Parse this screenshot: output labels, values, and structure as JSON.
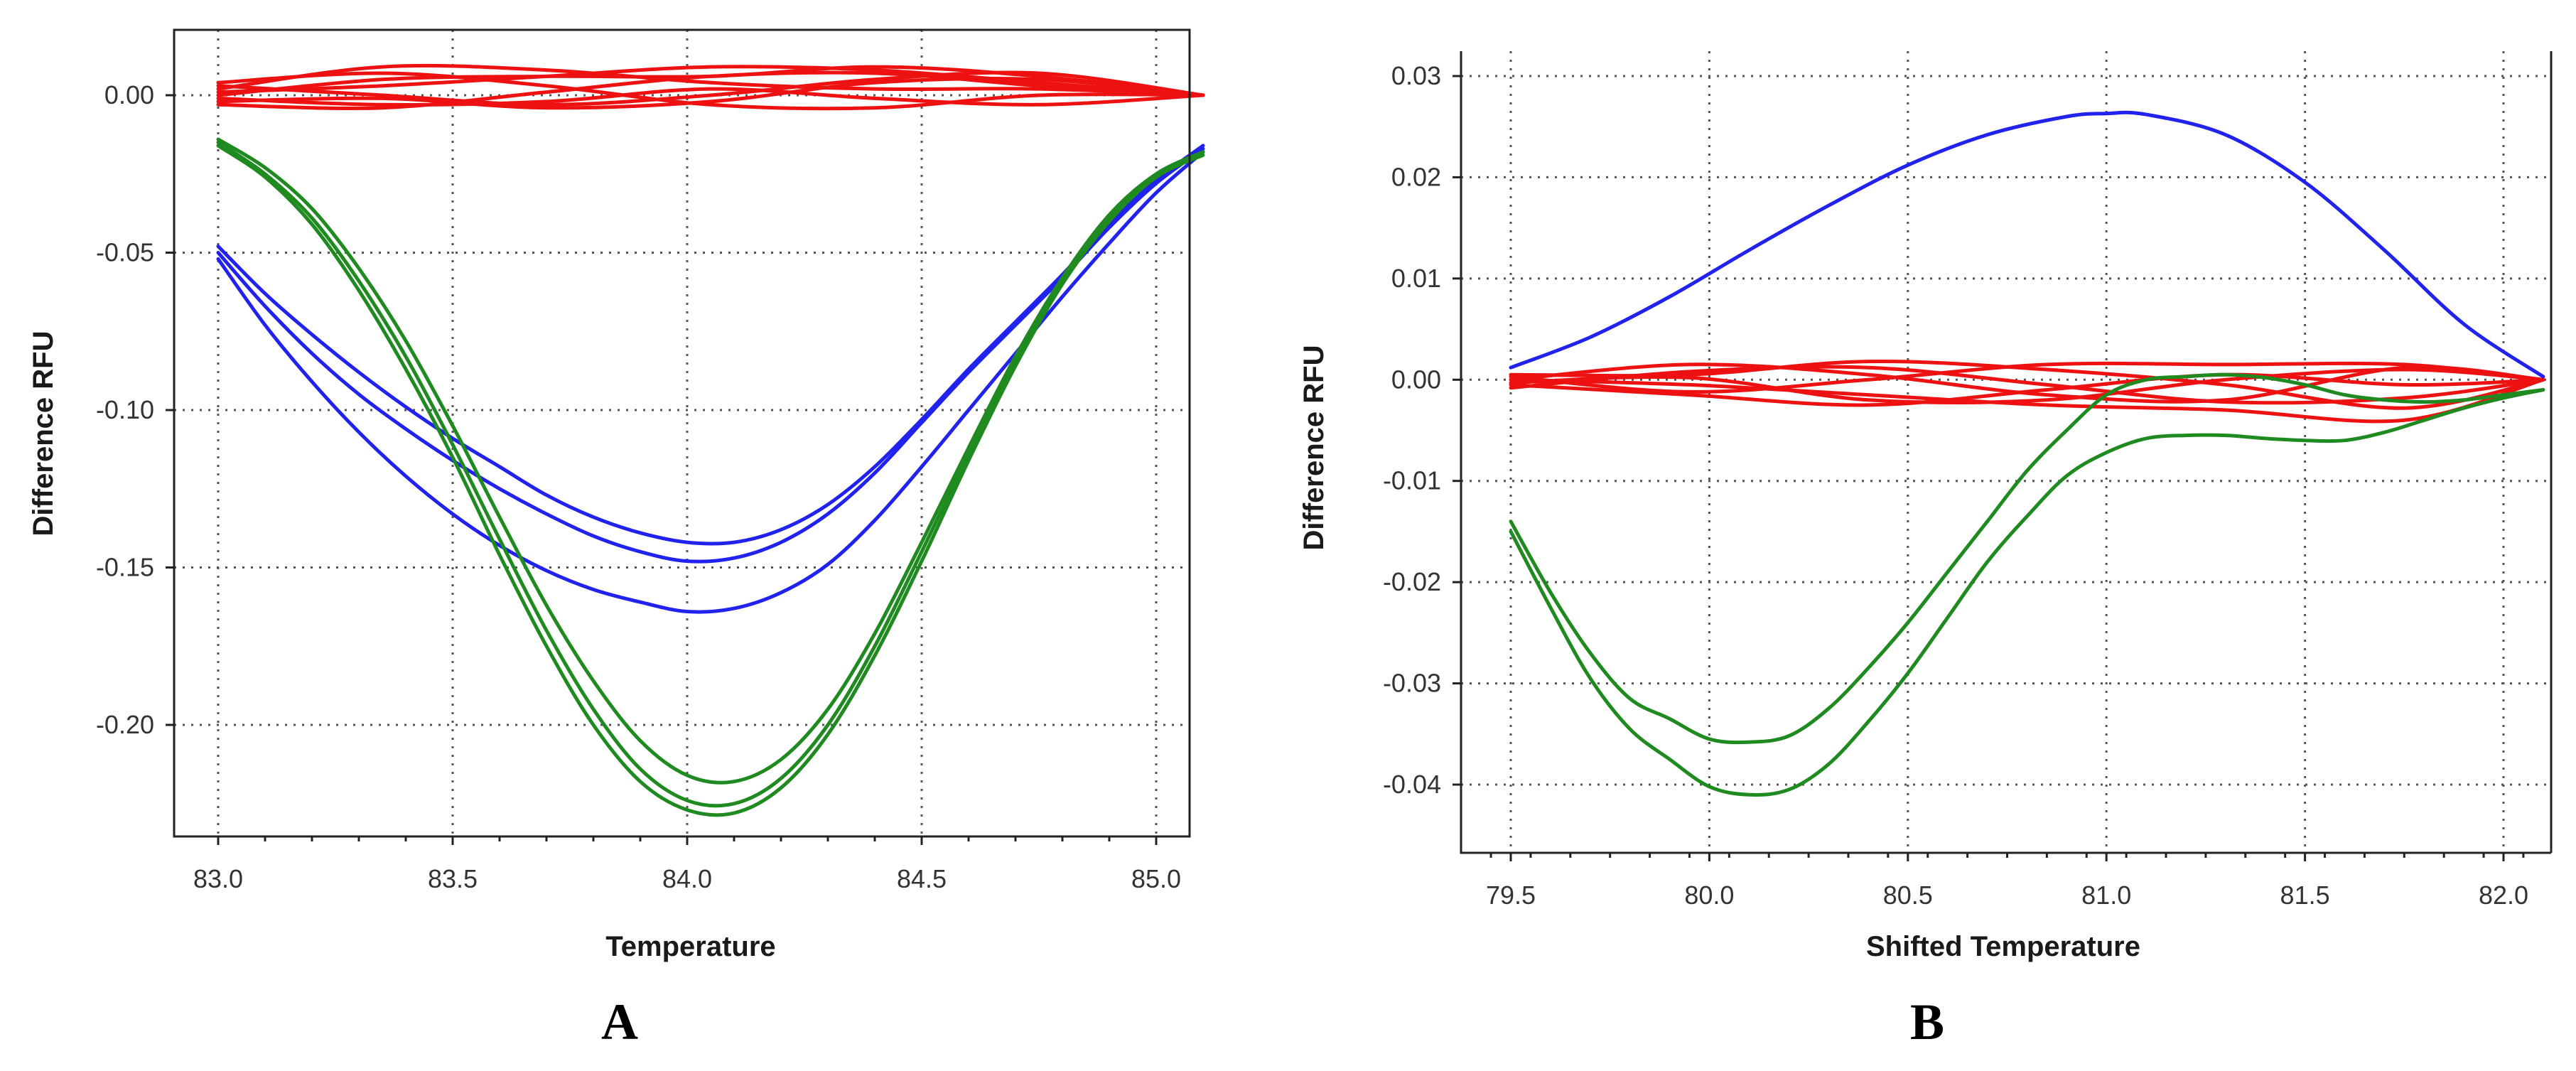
{
  "colors": {
    "red": "#ee1111",
    "blue": "#2222ee",
    "green": "#1f8a1f"
  },
  "chart_data": [
    {
      "type": "line",
      "panel_label": "A",
      "title": "",
      "xlabel": "Temperature",
      "ylabel": "Difference RFU",
      "xlim": [
        83.0,
        85.1
      ],
      "ylim": [
        -0.23,
        0.02
      ],
      "xticks": [
        83.0,
        83.5,
        84.0,
        84.5,
        85.0
      ],
      "xtick_labels": [
        "83.0",
        "83.5",
        "84.0",
        "84.5",
        "85.0"
      ],
      "yticks": [
        0.0,
        -0.05,
        -0.1,
        -0.15,
        -0.2
      ],
      "ytick_labels": [
        "0.00",
        "-0.05",
        "-0.10",
        "-0.15",
        "-0.20"
      ],
      "grid": true,
      "series": [
        {
          "name": "red-1",
          "color": "red",
          "x": [
            83.0,
            83.35,
            83.7,
            84.05,
            84.4,
            84.75,
            85.1
          ],
          "y": [
            0.004,
            0.007,
            0.003,
            -0.003,
            -0.004,
            0.0,
            0.0
          ]
        },
        {
          "name": "red-2",
          "color": "red",
          "x": [
            83.0,
            83.35,
            83.7,
            84.05,
            84.4,
            84.75,
            85.1
          ],
          "y": [
            -0.003,
            -0.004,
            0.001,
            0.006,
            0.007,
            0.003,
            0.0
          ]
        },
        {
          "name": "red-3",
          "color": "red",
          "x": [
            83.0,
            83.35,
            83.7,
            84.05,
            84.4,
            84.75,
            85.1
          ],
          "y": [
            0.002,
            0.009,
            0.008,
            0.004,
            0.002,
            0.002,
            0.0
          ]
        },
        {
          "name": "red-4",
          "color": "red",
          "x": [
            83.0,
            83.35,
            83.7,
            84.05,
            84.4,
            84.75,
            85.1
          ],
          "y": [
            -0.002,
            -0.001,
            -0.004,
            -0.002,
            0.004,
            0.005,
            0.0
          ]
        },
        {
          "name": "red-5",
          "color": "red",
          "x": [
            83.0,
            83.35,
            83.7,
            84.05,
            84.4,
            84.75,
            85.1
          ],
          "y": [
            0.001,
            0.003,
            0.006,
            0.009,
            0.008,
            0.004,
            0.0
          ]
        },
        {
          "name": "red-6",
          "color": "red",
          "x": [
            83.0,
            83.35,
            83.7,
            84.05,
            84.4,
            84.75,
            85.1
          ],
          "y": [
            -0.001,
            -0.003,
            -0.002,
            0.002,
            -0.001,
            -0.003,
            0.0
          ]
        },
        {
          "name": "red-7",
          "color": "red",
          "x": [
            83.0,
            83.35,
            83.7,
            84.05,
            84.4,
            84.75,
            85.1
          ],
          "y": [
            0.003,
            0.0,
            -0.003,
            0.0,
            0.005,
            0.007,
            0.0
          ]
        },
        {
          "name": "red-8",
          "color": "red",
          "x": [
            83.0,
            83.35,
            83.7,
            84.05,
            84.4,
            84.75,
            85.1
          ],
          "y": [
            0.0,
            0.005,
            0.006,
            0.006,
            0.009,
            0.006,
            0.0
          ]
        },
        {
          "name": "blue-1",
          "color": "blue",
          "x": [
            83.0,
            83.1,
            83.2,
            83.3,
            83.4,
            83.5,
            83.6,
            83.7,
            83.8,
            83.9,
            84.0,
            84.1,
            84.2,
            84.3,
            84.4,
            84.5,
            84.6,
            84.7,
            84.8,
            84.9,
            85.0,
            85.1
          ],
          "y": [
            -0.048,
            -0.063,
            -0.076,
            -0.088,
            -0.099,
            -0.109,
            -0.118,
            -0.127,
            -0.134,
            -0.139,
            -0.142,
            -0.142,
            -0.138,
            -0.13,
            -0.118,
            -0.103,
            -0.087,
            -0.072,
            -0.057,
            -0.041,
            -0.027,
            -0.016
          ]
        },
        {
          "name": "blue-2",
          "color": "blue",
          "x": [
            83.0,
            83.1,
            83.2,
            83.3,
            83.4,
            83.5,
            83.6,
            83.7,
            83.8,
            83.9,
            84.0,
            84.1,
            84.2,
            84.3,
            84.4,
            84.5,
            84.6,
            84.7,
            84.8,
            84.9,
            85.0,
            85.1
          ],
          "y": [
            -0.05,
            -0.067,
            -0.082,
            -0.095,
            -0.106,
            -0.116,
            -0.125,
            -0.133,
            -0.14,
            -0.145,
            -0.148,
            -0.147,
            -0.142,
            -0.133,
            -0.12,
            -0.104,
            -0.088,
            -0.073,
            -0.058,
            -0.042,
            -0.028,
            -0.017
          ]
        },
        {
          "name": "blue-3",
          "color": "blue",
          "x": [
            83.0,
            83.1,
            83.2,
            83.3,
            83.4,
            83.5,
            83.6,
            83.7,
            83.8,
            83.9,
            84.0,
            84.1,
            84.2,
            84.3,
            84.4,
            84.5,
            84.6,
            84.7,
            84.8,
            84.9,
            85.0,
            85.1
          ],
          "y": [
            -0.052,
            -0.073,
            -0.091,
            -0.107,
            -0.121,
            -0.133,
            -0.143,
            -0.151,
            -0.157,
            -0.161,
            -0.164,
            -0.163,
            -0.158,
            -0.149,
            -0.135,
            -0.118,
            -0.1,
            -0.082,
            -0.064,
            -0.047,
            -0.031,
            -0.018
          ]
        },
        {
          "name": "green-1",
          "color": "green",
          "x": [
            83.0,
            83.1,
            83.2,
            83.3,
            83.4,
            83.5,
            83.6,
            83.7,
            83.8,
            83.9,
            84.0,
            84.1,
            84.2,
            84.3,
            84.4,
            84.5,
            84.6,
            84.7,
            84.8,
            84.9,
            85.0,
            85.1
          ],
          "y": [
            -0.014,
            -0.023,
            -0.036,
            -0.055,
            -0.078,
            -0.105,
            -0.134,
            -0.162,
            -0.186,
            -0.205,
            -0.216,
            -0.218,
            -0.211,
            -0.195,
            -0.171,
            -0.142,
            -0.112,
            -0.083,
            -0.058,
            -0.038,
            -0.025,
            -0.018
          ]
        },
        {
          "name": "green-2",
          "color": "green",
          "x": [
            83.0,
            83.1,
            83.2,
            83.3,
            83.4,
            83.5,
            83.6,
            83.7,
            83.8,
            83.9,
            84.0,
            84.1,
            84.2,
            84.3,
            84.4,
            84.5,
            84.6,
            84.7,
            84.8,
            84.9,
            85.0,
            85.1
          ],
          "y": [
            -0.015,
            -0.025,
            -0.039,
            -0.059,
            -0.083,
            -0.111,
            -0.141,
            -0.17,
            -0.195,
            -0.214,
            -0.224,
            -0.225,
            -0.217,
            -0.2,
            -0.175,
            -0.145,
            -0.114,
            -0.084,
            -0.059,
            -0.039,
            -0.026,
            -0.018
          ]
        },
        {
          "name": "green-3",
          "color": "green",
          "x": [
            83.0,
            83.1,
            83.2,
            83.3,
            83.4,
            83.5,
            83.6,
            83.7,
            83.8,
            83.9,
            84.0,
            84.1,
            84.2,
            84.3,
            84.4,
            84.5,
            84.6,
            84.7,
            84.8,
            84.9,
            85.0,
            85.1
          ],
          "y": [
            -0.016,
            -0.026,
            -0.041,
            -0.062,
            -0.087,
            -0.115,
            -0.146,
            -0.175,
            -0.2,
            -0.218,
            -0.227,
            -0.228,
            -0.22,
            -0.203,
            -0.178,
            -0.148,
            -0.116,
            -0.086,
            -0.06,
            -0.04,
            -0.026,
            -0.019
          ]
        }
      ]
    },
    {
      "type": "line",
      "panel_label": "B",
      "title": "",
      "xlabel": "Shifted Temperature",
      "ylabel": "Difference RFU",
      "xlim": [
        79.45,
        82.25
      ],
      "ylim": [
        -0.047,
        0.033
      ],
      "xticks": [
        79.5,
        80.0,
        80.5,
        81.0,
        81.5,
        82.0
      ],
      "xtick_labels": [
        "79.5",
        "80.0",
        "80.5",
        "81.0",
        "81.5",
        "82.0"
      ],
      "yticks": [
        0.03,
        0.02,
        0.01,
        0.0,
        -0.01,
        -0.02,
        -0.03,
        -0.04
      ],
      "ytick_labels": [
        "0.03",
        "0.02",
        "0.01",
        "0.00",
        "-0.01",
        "-0.02",
        "-0.03",
        "-0.04"
      ],
      "grid": true,
      "series": [
        {
          "name": "blue-1",
          "color": "blue",
          "x": [
            79.5,
            79.7,
            79.9,
            80.1,
            80.3,
            80.5,
            80.7,
            80.9,
            81.0,
            81.1,
            81.3,
            81.5,
            81.7,
            81.9,
            82.1
          ],
          "y": [
            0.0012,
            0.0042,
            0.0082,
            0.0128,
            0.0172,
            0.0212,
            0.0242,
            0.026,
            0.0263,
            0.0262,
            0.0242,
            0.0195,
            0.0128,
            0.0055,
            0.0003
          ]
        },
        {
          "name": "red-1",
          "color": "red",
          "x": [
            79.5,
            79.95,
            80.4,
            80.85,
            81.3,
            81.75,
            82.1
          ],
          "y": [
            0.0,
            0.0015,
            0.0005,
            -0.0015,
            -0.002,
            0.0012,
            0.0
          ]
        },
        {
          "name": "red-2",
          "color": "red",
          "x": [
            79.5,
            79.95,
            80.4,
            80.85,
            81.3,
            81.75,
            82.1
          ],
          "y": [
            -0.0005,
            -0.0015,
            -0.0025,
            -0.001,
            0.0005,
            -0.0005,
            0.0
          ]
        },
        {
          "name": "red-3",
          "color": "red",
          "x": [
            79.5,
            79.95,
            80.4,
            80.85,
            81.3,
            81.75,
            82.1
          ],
          "y": [
            0.0005,
            0.0005,
            0.0018,
            0.001,
            -0.0005,
            -0.0028,
            0.0
          ]
        },
        {
          "name": "red-4",
          "color": "red",
          "x": [
            79.5,
            79.95,
            80.4,
            80.85,
            81.3,
            81.75,
            82.1
          ],
          "y": [
            0.0,
            -0.0005,
            -0.0015,
            -0.0025,
            -0.003,
            -0.004,
            0.0
          ]
        },
        {
          "name": "red-5",
          "color": "red",
          "x": [
            79.5,
            79.95,
            80.4,
            80.85,
            81.3,
            81.75,
            82.1
          ],
          "y": [
            -0.0008,
            0.0008,
            0.0012,
            -0.0005,
            -0.0022,
            -0.0018,
            0.0
          ]
        },
        {
          "name": "red-6",
          "color": "red",
          "x": [
            79.5,
            79.95,
            80.4,
            80.85,
            81.3,
            81.75,
            82.1
          ],
          "y": [
            0.0003,
            -0.0012,
            0.0,
            0.0015,
            0.0015,
            0.0015,
            0.0
          ]
        },
        {
          "name": "red-7",
          "color": "red",
          "x": [
            79.5,
            79.95,
            80.4,
            80.85,
            81.3,
            81.75,
            82.1
          ],
          "y": [
            -0.0003,
            0.0002,
            -0.002,
            -0.002,
            0.0,
            0.001,
            0.0
          ]
        },
        {
          "name": "green-1",
          "color": "green",
          "x": [
            79.5,
            79.6,
            79.7,
            79.8,
            79.9,
            80.0,
            80.1,
            80.2,
            80.3,
            80.4,
            80.5,
            80.6,
            80.7,
            80.8,
            80.9,
            81.0,
            81.1,
            81.2,
            81.3,
            81.4,
            81.5,
            81.6,
            81.7,
            81.8,
            81.9,
            82.0,
            82.1
          ],
          "y": [
            -0.014,
            -0.021,
            -0.027,
            -0.0315,
            -0.0335,
            -0.0355,
            -0.0358,
            -0.0352,
            -0.0325,
            -0.0285,
            -0.024,
            -0.019,
            -0.014,
            -0.009,
            -0.005,
            -0.0015,
            0.0,
            0.0003,
            0.0005,
            0.0002,
            -0.0005,
            -0.0015,
            -0.002,
            -0.0022,
            -0.002,
            -0.0015,
            -0.001
          ]
        },
        {
          "name": "green-2",
          "color": "green",
          "x": [
            79.5,
            79.6,
            79.7,
            79.8,
            79.9,
            80.0,
            80.1,
            80.2,
            80.3,
            80.4,
            80.5,
            80.6,
            80.7,
            80.8,
            80.9,
            81.0,
            81.1,
            81.2,
            81.3,
            81.4,
            81.5,
            81.6,
            81.7,
            81.8,
            81.9,
            82.0,
            82.1
          ],
          "y": [
            -0.015,
            -0.0225,
            -0.0295,
            -0.0345,
            -0.0375,
            -0.0402,
            -0.041,
            -0.0405,
            -0.038,
            -0.0338,
            -0.029,
            -0.0235,
            -0.018,
            -0.0135,
            -0.0095,
            -0.0072,
            -0.0058,
            -0.0055,
            -0.0055,
            -0.0058,
            -0.006,
            -0.006,
            -0.0052,
            -0.004,
            -0.0028,
            -0.0018,
            -0.001
          ]
        }
      ]
    }
  ]
}
